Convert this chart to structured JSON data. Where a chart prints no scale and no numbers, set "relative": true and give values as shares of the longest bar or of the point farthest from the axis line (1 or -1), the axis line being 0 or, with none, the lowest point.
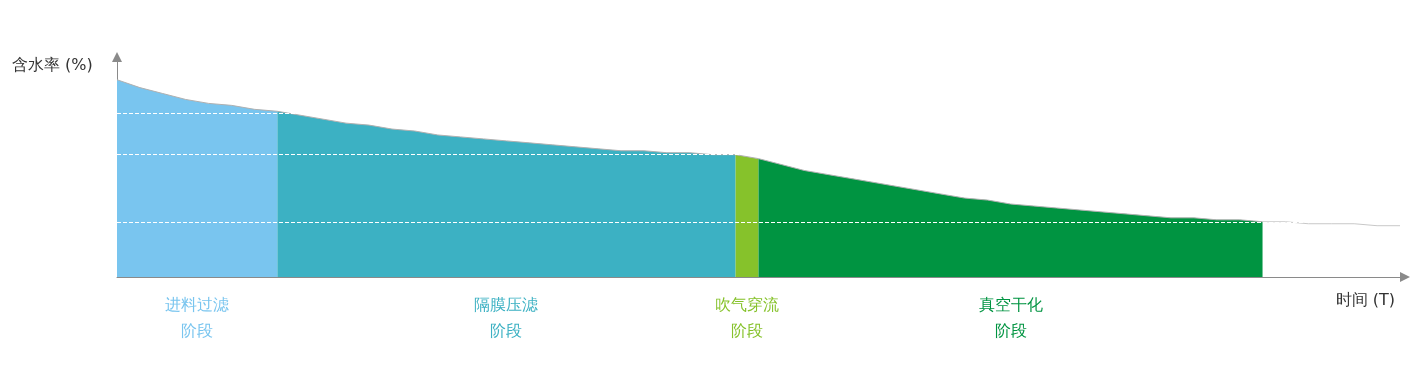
{
  "chart_data": {
    "type": "area",
    "relative": true,
    "xlabel": "时间 (T)",
    "ylabel": "含水率 (%)",
    "legend": false,
    "grid": false,
    "categories": [
      null,
      null,
      null,
      null,
      null,
      null,
      null,
      null,
      null,
      null,
      null,
      null,
      null,
      null,
      null,
      null,
      null,
      null,
      null,
      null,
      null,
      null,
      null,
      null,
      null,
      null,
      null,
      null,
      null,
      null,
      null,
      null,
      null,
      null,
      null,
      null,
      null,
      null,
      null,
      null,
      null,
      null,
      null,
      null,
      null,
      null,
      null,
      null,
      null,
      null,
      null,
      null,
      null,
      null,
      null,
      null,
      null
    ],
    "series": [
      {
        "name": "进料过滤阶段",
        "color": "#79c5ef",
        "values": [
          1,
          0.96,
          0.93,
          0.9,
          0.88,
          0.87,
          0.85,
          0.84,
          null,
          null,
          null,
          null,
          null,
          null,
          null,
          null,
          null,
          null,
          null,
          null,
          null,
          null,
          null,
          null,
          null,
          null,
          null,
          null,
          null,
          null,
          null,
          null,
          null,
          null,
          null,
          null,
          null,
          null,
          null,
          null,
          null,
          null,
          null,
          null,
          null,
          null,
          null,
          null,
          null,
          null,
          null,
          null,
          null,
          null,
          null,
          null,
          null
        ]
      },
      {
        "name": "隔膜压滤阶段",
        "color": "#3cb1c3",
        "values": [
          null,
          null,
          null,
          null,
          null,
          null,
          null,
          0.84,
          0.82,
          0.8,
          0.78,
          0.77,
          0.75,
          0.74,
          0.72,
          0.71,
          0.7,
          0.69,
          0.68,
          0.67,
          0.66,
          0.65,
          0.64,
          0.64,
          0.63,
          0.63,
          0.62,
          0.62,
          null,
          null,
          null,
          null,
          null,
          null,
          null,
          null,
          null,
          null,
          null,
          null,
          null,
          null,
          null,
          null,
          null,
          null,
          null,
          null,
          null,
          null,
          null,
          null,
          null,
          null,
          null,
          null,
          null
        ]
      },
      {
        "name": "吹气穿流阶段",
        "color": "#86c22b",
        "values": [
          null,
          null,
          null,
          null,
          null,
          null,
          null,
          null,
          null,
          null,
          null,
          null,
          null,
          null,
          null,
          null,
          null,
          null,
          null,
          null,
          null,
          null,
          null,
          null,
          null,
          null,
          null,
          0.62,
          0.6,
          null,
          null,
          null,
          null,
          null,
          null,
          null,
          null,
          null,
          null,
          null,
          null,
          null,
          null,
          null,
          null,
          null,
          null,
          null,
          null,
          null,
          null,
          null,
          null,
          null,
          null,
          null,
          null
        ]
      },
      {
        "name": "真空干化阶段",
        "color": "#009441",
        "values": [
          null,
          null,
          null,
          null,
          null,
          null,
          null,
          null,
          null,
          null,
          null,
          null,
          null,
          null,
          null,
          null,
          null,
          null,
          null,
          null,
          null,
          null,
          null,
          null,
          null,
          null,
          null,
          null,
          0.6,
          0.57,
          0.54,
          0.52,
          0.5,
          0.48,
          0.46,
          0.44,
          0.42,
          0.4,
          0.39,
          0.37,
          0.36,
          0.35,
          0.34,
          0.33,
          0.32,
          0.31,
          0.3,
          0.3,
          0.29,
          0.29,
          0.28,
          null,
          null,
          null,
          null,
          null,
          null
        ]
      },
      {
        "type": "line",
        "color": "#c8c8c8",
        "values": [
          null,
          null,
          null,
          null,
          null,
          null,
          null,
          null,
          null,
          null,
          null,
          null,
          null,
          null,
          null,
          null,
          null,
          null,
          null,
          null,
          null,
          null,
          null,
          null,
          null,
          null,
          null,
          null,
          null,
          null,
          null,
          null,
          null,
          null,
          null,
          null,
          null,
          null,
          null,
          null,
          null,
          null,
          null,
          null,
          null,
          null,
          null,
          null,
          null,
          null,
          0.28,
          0.28,
          0.27,
          0.27,
          0.27,
          0.26,
          0.26
        ]
      }
    ],
    "ref_lines": [
      {
        "axis": "y",
        "value": 0.83,
        "color": "#ffffff",
        "line_style": "dashed"
      },
      {
        "axis": "y",
        "value": 0.62,
        "color": "#ffffff",
        "line_style": "dashed"
      },
      {
        "axis": "y",
        "value": 0.28,
        "color": "#ffffff",
        "line_style": "dashed"
      }
    ]
  }
}
